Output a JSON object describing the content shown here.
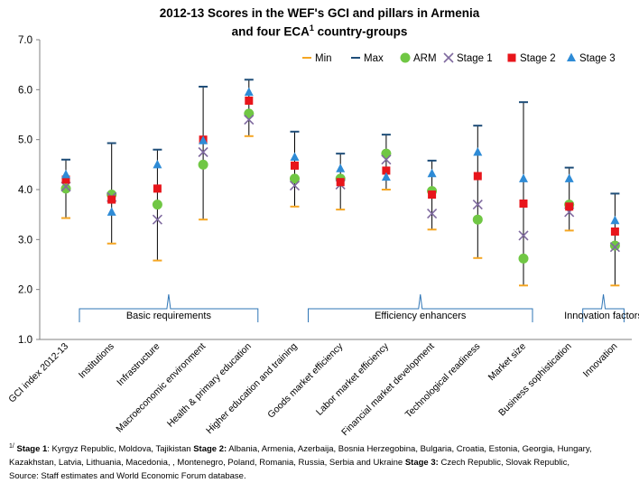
{
  "title": {
    "line1": "2012-13 Scores in the WEF's GCI and pillars in Armenia",
    "line2_pre": "and four  ECA",
    "line2_sup": "1",
    "line2_post": " country-groups"
  },
  "chart_data": {
    "type": "scatter",
    "categories": [
      "GCI index 2012-13",
      "Institutions",
      "Infrastructure",
      "Macroeconomic environment",
      "Health & primary education",
      "Higher education and training",
      "Goods market efficiency",
      "Labor market efficiency",
      "Financial market development",
      "Technological readiness",
      "Market size",
      "Business sophistication",
      "Innovation"
    ],
    "ylim": [
      1.0,
      7.0
    ],
    "yticks": [
      "1.0",
      "2.0",
      "3.0",
      "4.0",
      "5.0",
      "6.0",
      "7.0"
    ],
    "grid": false,
    "legend_position": "top-right",
    "series": [
      {
        "name": "Min",
        "marker": "dash",
        "color": "#F5A623",
        "values": [
          3.43,
          2.92,
          2.58,
          3.4,
          5.07,
          3.66,
          3.6,
          4.0,
          3.2,
          2.63,
          2.08,
          3.18,
          2.08
        ]
      },
      {
        "name": "Max",
        "marker": "dash",
        "color": "#1F4E79",
        "values": [
          4.6,
          4.93,
          4.8,
          6.06,
          6.2,
          5.16,
          4.72,
          5.1,
          4.58,
          5.28,
          5.75,
          4.44,
          3.92
        ]
      },
      {
        "name": "ARM",
        "marker": "circle",
        "color": "#70C744",
        "values": [
          4.02,
          3.9,
          3.7,
          4.5,
          5.52,
          4.22,
          4.22,
          4.72,
          3.97,
          3.4,
          2.62,
          3.7,
          2.88
        ]
      },
      {
        "name": "Stage 1",
        "marker": "x",
        "color": "#7F6A9F",
        "values": [
          4.06,
          3.85,
          3.4,
          4.75,
          5.4,
          4.08,
          4.1,
          4.6,
          3.52,
          3.7,
          3.08,
          3.55,
          2.85
        ]
      },
      {
        "name": "Stage 2",
        "marker": "square",
        "color": "#E8151B",
        "values": [
          4.2,
          3.8,
          4.02,
          5.0,
          5.78,
          4.48,
          4.15,
          4.38,
          3.9,
          4.27,
          3.72,
          3.66,
          3.16
        ]
      },
      {
        "name": "Stage 3",
        "marker": "triangle",
        "color": "#2E8BD6",
        "values": [
          4.3,
          3.55,
          4.5,
          4.98,
          5.95,
          4.65,
          4.42,
          4.25,
          4.32,
          4.75,
          4.22,
          4.22,
          3.38
        ]
      }
    ],
    "groups": [
      {
        "label": "Basic requirements",
        "from": 0,
        "to": 4
      },
      {
        "label": "Efficiency enhancers",
        "from": 5,
        "to": 10
      },
      {
        "label": "Innovation factors",
        "from": 11,
        "to": 12
      }
    ]
  },
  "footnote": {
    "sup": "1/",
    "s1_label": "Stage 1",
    "s1_text": ":  Kyrgyz Republic, Moldova, Tajikistan ",
    "s2_label": "Stage 2:",
    "s2_text": " Albania,  Armenia,  Azerbaija,  Bosnia  Herzegobina,  Bulgaria,  Croatia,  Estonia,  Georgia,  Hungary,",
    "line2": "Kazakhstan,  Latvia,  Lithuania,  Macedonia,  ,  Montenegro,  Poland,  Romania,   Russia,  Serbia and Ukraine ",
    "s3_label": "Stage 3:",
    "s3_text": " Czech Republic, Slovak Republic,",
    "source": "Source: Staff estimates  and World Economic Forum database."
  }
}
